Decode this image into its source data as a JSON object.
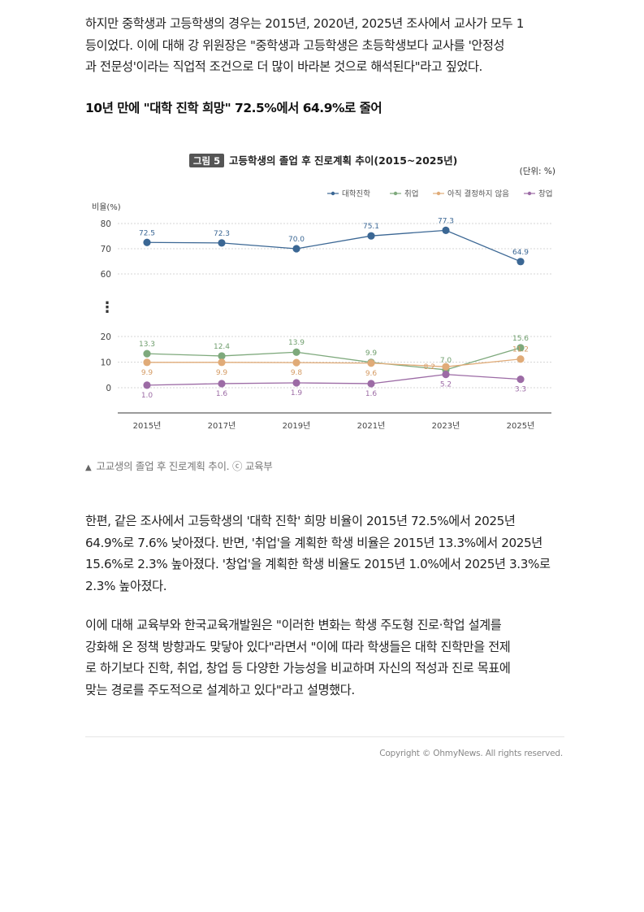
{
  "article": {
    "intro_lines": [
      "하지만 중학생과 고등학생의 경우는 2015년, 2020년, 2025년 조사에서 교사가 모두 1",
      "등이었다. 이에 대해 강 위원장은 \"중학생과 고등학생은 초등학생보다 교사를 '안정성",
      "과 전문성'이라는 직업적 조건으로 더 많이 바라본 것으로 해석된다\"라고 짚었다."
    ],
    "subheading": "10년 만에 \"대학 진학 희망\" 72.5%에서 64.9%로 줄어",
    "caption_marker": "▲",
    "caption": "고교생의 졸업 후 진로계획 추이. ⓒ 교육부",
    "second_lines": [
      "한편, 같은 조사에서 고등학생의 '대학 진학' 희망 비율이 2015년 72.5%에서 2025년",
      "64.9%로 7.6% 낮아졌다. 반면, '취업'을 계획한 학생 비율은 2015년 13.3%에서 2025년",
      "15.6%로 2.3% 높아졌다. '창업'을 계획한 학생 비율도 2015년 1.0%에서 2025년 3.3%로",
      "2.3% 높아졌다."
    ],
    "third_lines": [
      "이에 대해 교육부와 한국교육개발원은 \"이러한 변화는 학생 주도형 진로·학업 설계를",
      "강화해 온 정책 방향과도 맞닿아 있다\"라면서 \"이에 따라 학생들은 대학 진학만을 전제",
      "로 하기보다 진학, 취업, 창업 등 다양한 가능성을 비교하며 자신의 적성과 진로 목표에",
      "맞는 경로를 주도적으로 설계하고 있다\"라고 설명했다."
    ],
    "copyright": "Copyright © OhmyNews. All rights reserved."
  },
  "chart_data": {
    "type": "line",
    "figure_badge": "그림 5",
    "title": "고등학생의 졸업 후 진로계획 추이(2015~2025년)",
    "unit": "(단위: %)",
    "ylabel": "비율(%)",
    "axis_break_marker": "⋮",
    "x": [
      "2015년",
      "2017년",
      "2019년",
      "2021년",
      "2023년",
      "2025년"
    ],
    "upper_ticks": [
      80,
      70,
      60
    ],
    "lower_ticks": [
      20,
      10,
      0
    ],
    "ylim_upper": [
      60,
      80
    ],
    "ylim_lower": [
      0,
      20
    ],
    "legend_position": "top-right",
    "grid": true,
    "series": [
      {
        "name": "대학진학",
        "color": "#3b6794",
        "label_color": "#3b6794",
        "values": [
          72.5,
          72.3,
          70.0,
          75.1,
          77.3,
          64.9
        ],
        "labels": [
          "72.5",
          "72.3",
          "70.0",
          "75.1",
          "77.3",
          "64.9"
        ],
        "label_side": [
          "above",
          "above",
          "above",
          "above",
          "above",
          "above"
        ]
      },
      {
        "name": "취업",
        "color": "#7ea97c",
        "label_color": "#6f9e6d",
        "values": [
          13.3,
          12.4,
          13.9,
          9.9,
          7.0,
          15.6
        ],
        "labels": [
          "13.3",
          "12.4",
          "13.9",
          "9.9",
          "7.0",
          "15.6"
        ],
        "label_side": [
          "above",
          "above",
          "above",
          "above",
          "above",
          "above"
        ]
      },
      {
        "name": "아직 결정하지 않음",
        "color": "#e0ab78",
        "label_color": "#d49a62",
        "values": [
          9.9,
          9.9,
          9.8,
          9.6,
          8.2,
          11.2
        ],
        "labels": [
          "9.9",
          "9.9",
          "9.8",
          "9.6",
          "8.2",
          "11.2"
        ],
        "label_side": [
          "below",
          "below",
          "below",
          "below",
          "left",
          "above"
        ]
      },
      {
        "name": "창업",
        "color": "#9c6ba5",
        "label_color": "#9c6ba5",
        "values": [
          1.0,
          1.6,
          1.9,
          1.6,
          5.2,
          3.3
        ],
        "labels": [
          "1.0",
          "1.6",
          "1.9",
          "1.6",
          "5.2",
          "3.3"
        ],
        "label_side": [
          "below",
          "below",
          "below",
          "below",
          "below",
          "below"
        ]
      }
    ]
  }
}
